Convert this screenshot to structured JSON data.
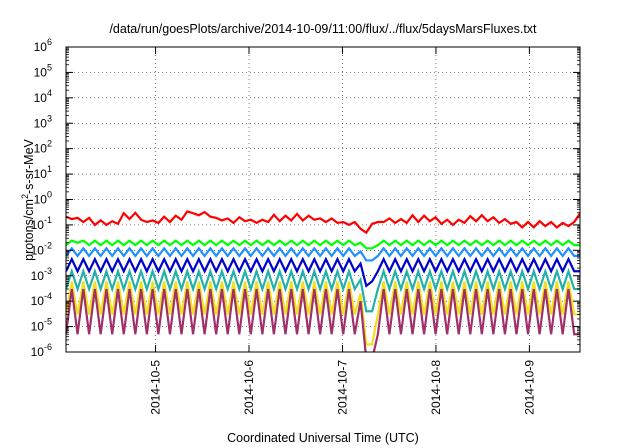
{
  "chart_data": {
    "type": "line",
    "title": "/data/run/goesPlots/archive/2014-10-09/11:00/flux/../flux/5daysMarsFluxes.txt",
    "xlabel": "Coordinated Universal Time (UTC)",
    "ylabel_parts": [
      "protons/cm",
      "2",
      "-s-sr-MeV"
    ],
    "yscale": "log",
    "ylim": [
      1e-06,
      1000000.0
    ],
    "xlim": [
      "2014-10-04 01:00",
      "2014-10-09 13:00"
    ],
    "grid": true,
    "x_tick_labels": [
      "2014-10-5",
      "2014-10-6",
      "2014-10-7",
      "2014-10-8",
      "2014-10-9"
    ],
    "y_ticks": [
      {
        "base": "10",
        "exp": "-6"
      },
      {
        "base": "10",
        "exp": "-5"
      },
      {
        "base": "10",
        "exp": "-4"
      },
      {
        "base": "10",
        "exp": "-3"
      },
      {
        "base": "10",
        "exp": "-2"
      },
      {
        "base": "10",
        "exp": "-1"
      },
      {
        "base": "10",
        "exp": "0"
      },
      {
        "base": "10",
        "exp": "1"
      },
      {
        "base": "10",
        "exp": "2"
      },
      {
        "base": "10",
        "exp": "3"
      },
      {
        "base": "10",
        "exp": "4"
      },
      {
        "base": "10",
        "exp": "5"
      },
      {
        "base": "10",
        "exp": "6"
      }
    ],
    "series": [
      {
        "color": "#ff0000",
        "values": [
          0.21,
          0.17,
          0.19,
          0.13,
          0.19,
          0.1,
          0.15,
          0.1,
          0.14,
          0.11,
          0.29,
          0.17,
          0.3,
          0.16,
          0.13,
          0.15,
          0.12,
          0.21,
          0.13,
          0.23,
          0.16,
          0.34,
          0.29,
          0.24,
          0.32,
          0.21,
          0.19,
          0.15,
          0.18,
          0.12,
          0.2,
          0.14,
          0.16,
          0.12,
          0.16,
          0.13,
          0.25,
          0.14,
          0.23,
          0.15,
          0.27,
          0.15,
          0.23,
          0.16,
          0.18,
          0.13,
          0.18,
          0.12,
          0.13,
          0.1,
          0.13,
          0.07,
          0.05,
          0.11,
          0.13,
          0.13,
          0.18,
          0.12,
          0.17,
          0.12,
          0.24,
          0.13,
          0.23,
          0.14,
          0.2,
          0.11,
          0.16,
          0.1,
          0.16,
          0.12,
          0.22,
          0.14,
          0.24,
          0.14,
          0.2,
          0.12,
          0.17,
          0.11,
          0.13,
          0.08,
          0.13,
          0.08,
          0.14,
          0.09,
          0.13,
          0.08,
          0.12,
          0.09,
          0.13,
          0.28
        ]
      },
      {
        "color": "#00ff00",
        "values": [
          0.016,
          0.024,
          0.02,
          0.024,
          0.016,
          0.024,
          0.016,
          0.024,
          0.016,
          0.024,
          0.016,
          0.024,
          0.016,
          0.024,
          0.016,
          0.024,
          0.016,
          0.024,
          0.016,
          0.024,
          0.016,
          0.024,
          0.016,
          0.024,
          0.016,
          0.024,
          0.016,
          0.024,
          0.016,
          0.024,
          0.016,
          0.024,
          0.016,
          0.024,
          0.016,
          0.024,
          0.016,
          0.024,
          0.016,
          0.024,
          0.016,
          0.024,
          0.016,
          0.024,
          0.016,
          0.024,
          0.016,
          0.024,
          0.016,
          0.024,
          0.016,
          0.02,
          0.012,
          0.012,
          0.016,
          0.024,
          0.016,
          0.024,
          0.016,
          0.024,
          0.016,
          0.024,
          0.016,
          0.024,
          0.016,
          0.024,
          0.016,
          0.024,
          0.016,
          0.024,
          0.016,
          0.024,
          0.016,
          0.024,
          0.016,
          0.024,
          0.016,
          0.024,
          0.016,
          0.024,
          0.016,
          0.024,
          0.016,
          0.024,
          0.016,
          0.024,
          0.016,
          0.024,
          0.016,
          0.016
        ]
      },
      {
        "color": "#1e90ff",
        "values": [
          0.006,
          0.012,
          0.006,
          0.012,
          0.006,
          0.012,
          0.006,
          0.012,
          0.006,
          0.012,
          0.006,
          0.012,
          0.006,
          0.012,
          0.006,
          0.012,
          0.006,
          0.012,
          0.006,
          0.012,
          0.006,
          0.012,
          0.006,
          0.012,
          0.006,
          0.012,
          0.006,
          0.012,
          0.006,
          0.012,
          0.006,
          0.012,
          0.006,
          0.012,
          0.006,
          0.012,
          0.006,
          0.012,
          0.006,
          0.012,
          0.006,
          0.012,
          0.006,
          0.012,
          0.006,
          0.012,
          0.006,
          0.012,
          0.006,
          0.012,
          0.006,
          0.009,
          0.004,
          0.004,
          0.006,
          0.012,
          0.006,
          0.012,
          0.006,
          0.012,
          0.006,
          0.012,
          0.006,
          0.012,
          0.006,
          0.012,
          0.006,
          0.012,
          0.006,
          0.012,
          0.006,
          0.012,
          0.006,
          0.012,
          0.006,
          0.012,
          0.006,
          0.012,
          0.006,
          0.012,
          0.006,
          0.012,
          0.006,
          0.012,
          0.006,
          0.012,
          0.006,
          0.012,
          0.006,
          0.006
        ]
      },
      {
        "color": "#0000cd",
        "values": [
          0.0015,
          0.0045,
          0.0015,
          0.0045,
          0.0015,
          0.0045,
          0.0015,
          0.0045,
          0.0015,
          0.0045,
          0.0015,
          0.0045,
          0.0015,
          0.0045,
          0.0015,
          0.0045,
          0.0015,
          0.0045,
          0.0015,
          0.0045,
          0.0015,
          0.0045,
          0.0015,
          0.0045,
          0.0015,
          0.0045,
          0.0015,
          0.0045,
          0.0015,
          0.0045,
          0.0015,
          0.0045,
          0.0015,
          0.0045,
          0.0015,
          0.0045,
          0.0015,
          0.0045,
          0.0015,
          0.0045,
          0.0015,
          0.0045,
          0.0015,
          0.0045,
          0.0015,
          0.0045,
          0.0015,
          0.0045,
          0.0015,
          0.0045,
          0.0015,
          0.003,
          0.0004,
          0.0006,
          0.0015,
          0.0045,
          0.0015,
          0.0045,
          0.0015,
          0.0045,
          0.0015,
          0.0045,
          0.0015,
          0.0045,
          0.0015,
          0.0045,
          0.0015,
          0.0045,
          0.0015,
          0.0045,
          0.0015,
          0.0045,
          0.0015,
          0.0045,
          0.0015,
          0.0045,
          0.0015,
          0.0045,
          0.0015,
          0.0045,
          0.0015,
          0.0045,
          0.0015,
          0.0045,
          0.0015,
          0.0045,
          0.0015,
          0.0045,
          0.0015,
          0.0015
        ]
      },
      {
        "color": "#20b2aa",
        "values": [
          0.0003,
          0.0015,
          0.0003,
          0.0015,
          0.0003,
          0.0015,
          0.0003,
          0.0015,
          0.0003,
          0.0015,
          0.0003,
          0.0015,
          0.0003,
          0.0015,
          0.0003,
          0.0015,
          0.0003,
          0.0015,
          0.0003,
          0.0015,
          0.0003,
          0.0015,
          0.0003,
          0.0015,
          0.0003,
          0.0015,
          0.0003,
          0.0015,
          0.0003,
          0.0015,
          0.0003,
          0.0015,
          0.0003,
          0.0015,
          0.0003,
          0.0015,
          0.0003,
          0.0015,
          0.0003,
          0.0015,
          0.0003,
          0.0015,
          0.0003,
          0.0015,
          0.0003,
          0.0015,
          0.0003,
          0.0015,
          0.0003,
          0.0015,
          0.0003,
          0.0007,
          4e-05,
          4e-05,
          0.0003,
          0.0015,
          0.0003,
          0.0015,
          0.0003,
          0.0015,
          0.0003,
          0.0015,
          0.0003,
          0.0015,
          0.0003,
          0.0015,
          0.0003,
          0.0015,
          0.0003,
          0.0015,
          0.0003,
          0.0015,
          0.0003,
          0.0015,
          0.0003,
          0.0015,
          0.0003,
          0.0015,
          0.0003,
          0.0015,
          0.0003,
          0.0015,
          0.0003,
          0.0015,
          0.0003,
          0.0015,
          0.0003,
          0.0015,
          0.0003,
          0.0003
        ]
      },
      {
        "color": "#f0e020",
        "values": [
          3e-05,
          0.0006,
          3e-05,
          0.0006,
          3e-05,
          0.0006,
          3e-05,
          0.0006,
          3e-05,
          0.0006,
          3e-05,
          0.0006,
          3e-05,
          0.0006,
          3e-05,
          0.0006,
          3e-05,
          0.0006,
          3e-05,
          0.0006,
          3e-05,
          0.0006,
          3e-05,
          0.0006,
          3e-05,
          0.0006,
          3e-05,
          0.0006,
          3e-05,
          0.0006,
          3e-05,
          0.0006,
          3e-05,
          0.0006,
          3e-05,
          0.0006,
          3e-05,
          0.0006,
          3e-05,
          0.0006,
          3e-05,
          0.0006,
          3e-05,
          0.0006,
          3e-05,
          0.0006,
          3e-05,
          0.0006,
          3e-05,
          0.0006,
          3e-05,
          0.0002,
          2e-06,
          2e-06,
          3e-05,
          0.0006,
          3e-05,
          0.0006,
          3e-05,
          0.0006,
          3e-05,
          0.0006,
          3e-05,
          0.0006,
          3e-05,
          0.0006,
          3e-05,
          0.0006,
          3e-05,
          0.0006,
          3e-05,
          0.0006,
          3e-05,
          0.0006,
          3e-05,
          0.0006,
          3e-05,
          0.0006,
          3e-05,
          0.0006,
          3e-05,
          0.0006,
          3e-05,
          0.0006,
          3e-05,
          0.0006,
          3e-05,
          0.0006,
          3e-05,
          3e-05
        ]
      },
      {
        "color": "#a0306a",
        "values": [
          5e-06,
          0.0003,
          5e-06,
          0.0003,
          5e-06,
          0.0003,
          5e-06,
          0.0003,
          5e-06,
          0.0003,
          5e-06,
          0.0003,
          5e-06,
          0.0003,
          5e-06,
          0.0003,
          5e-06,
          0.0003,
          5e-06,
          0.0003,
          5e-06,
          0.0003,
          5e-06,
          0.0003,
          5e-06,
          0.0003,
          5e-06,
          0.0003,
          5e-06,
          0.0003,
          5e-06,
          0.0003,
          5e-06,
          0.0003,
          5e-06,
          0.0003,
          5e-06,
          0.0003,
          5e-06,
          0.0003,
          5e-06,
          0.0003,
          5e-06,
          0.0003,
          5e-06,
          0.0003,
          5e-06,
          0.0003,
          5e-06,
          0.0003,
          5e-06,
          0.0001,
          5e-07,
          5e-07,
          5e-06,
          0.0003,
          5e-06,
          0.0003,
          5e-06,
          0.0003,
          5e-06,
          0.0003,
          5e-06,
          0.0003,
          5e-06,
          0.0003,
          5e-06,
          0.0003,
          5e-06,
          0.0003,
          5e-06,
          0.0003,
          5e-06,
          0.0003,
          5e-06,
          0.0003,
          5e-06,
          0.0003,
          5e-06,
          0.0003,
          5e-06,
          0.0003,
          5e-06,
          0.0003,
          5e-06,
          0.0003,
          5e-06,
          0.0003,
          5e-06,
          5e-06
        ]
      }
    ]
  }
}
